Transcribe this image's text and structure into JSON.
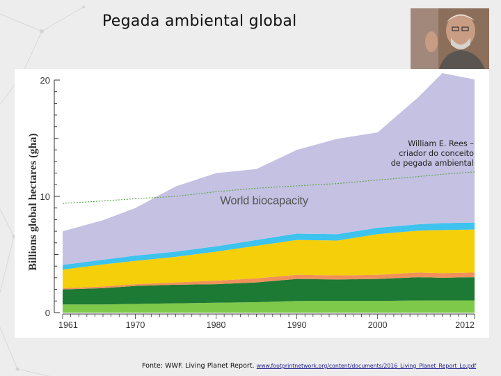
{
  "slide": {
    "title": "Pegada ambiental global"
  },
  "caption": {
    "lines": [
      "William E. Rees –",
      "criador do conceito",
      "de pegada ambiental"
    ]
  },
  "source": {
    "label": "Fonte: WWF. Living Planet Report.",
    "url": "www.footprintnetwork.org/content/documents/2016_Living_Planet_Report_Lo.pdf"
  },
  "chart_data": {
    "type": "area",
    "stacked": true,
    "ylabel": "Billions global hectares (gha)",
    "ylim": [
      0,
      20
    ],
    "yticks": [
      0,
      10,
      20
    ],
    "xlim": [
      1961,
      2012
    ],
    "xticks": [
      1961,
      1970,
      1980,
      1990,
      2000,
      2012
    ],
    "annotation": "World biocapacity",
    "x": [
      1961,
      1966,
      1970,
      1975,
      1980,
      1985,
      1990,
      1995,
      2000,
      2005,
      2008,
      2012
    ],
    "series": [
      {
        "name": "layer-1",
        "color": "#7ec84a",
        "values": [
          0.7,
          0.7,
          0.75,
          0.8,
          0.85,
          0.9,
          1.0,
          1.0,
          1.0,
          1.05,
          1.05,
          1.05
        ]
      },
      {
        "name": "layer-2",
        "color": "#1d7a34",
        "values": [
          1.3,
          1.4,
          1.55,
          1.6,
          1.6,
          1.7,
          1.9,
          1.85,
          1.9,
          2.0,
          1.95,
          2.0
        ]
      },
      {
        "name": "layer-3",
        "color": "#f0915a",
        "values": [
          0.1,
          0.15,
          0.15,
          0.2,
          0.3,
          0.35,
          0.35,
          0.35,
          0.35,
          0.4,
          0.4,
          0.4
        ]
      },
      {
        "name": "layer-4",
        "color": "#f4cf0a",
        "values": [
          1.6,
          1.9,
          2.0,
          2.2,
          2.5,
          2.8,
          3.0,
          3.0,
          3.5,
          3.6,
          3.7,
          3.7
        ]
      },
      {
        "name": "layer-5",
        "color": "#3ec2ee",
        "values": [
          0.4,
          0.4,
          0.45,
          0.45,
          0.45,
          0.5,
          0.55,
          0.55,
          0.55,
          0.55,
          0.6,
          0.6
        ]
      },
      {
        "name": "layer-6",
        "color": "#c5c1e3",
        "values": [
          2.9,
          3.4,
          4.1,
          5.6,
          6.3,
          6.1,
          7.2,
          8.2,
          8.2,
          10.9,
          12.9,
          12.3
        ]
      }
    ],
    "biocapacity": {
      "name": "World biocapacity",
      "color": "#5aa84a",
      "values": [
        9.4,
        9.6,
        9.8,
        10.0,
        10.4,
        10.7,
        10.9,
        11.1,
        11.4,
        11.7,
        11.9,
        12.1
      ]
    }
  }
}
